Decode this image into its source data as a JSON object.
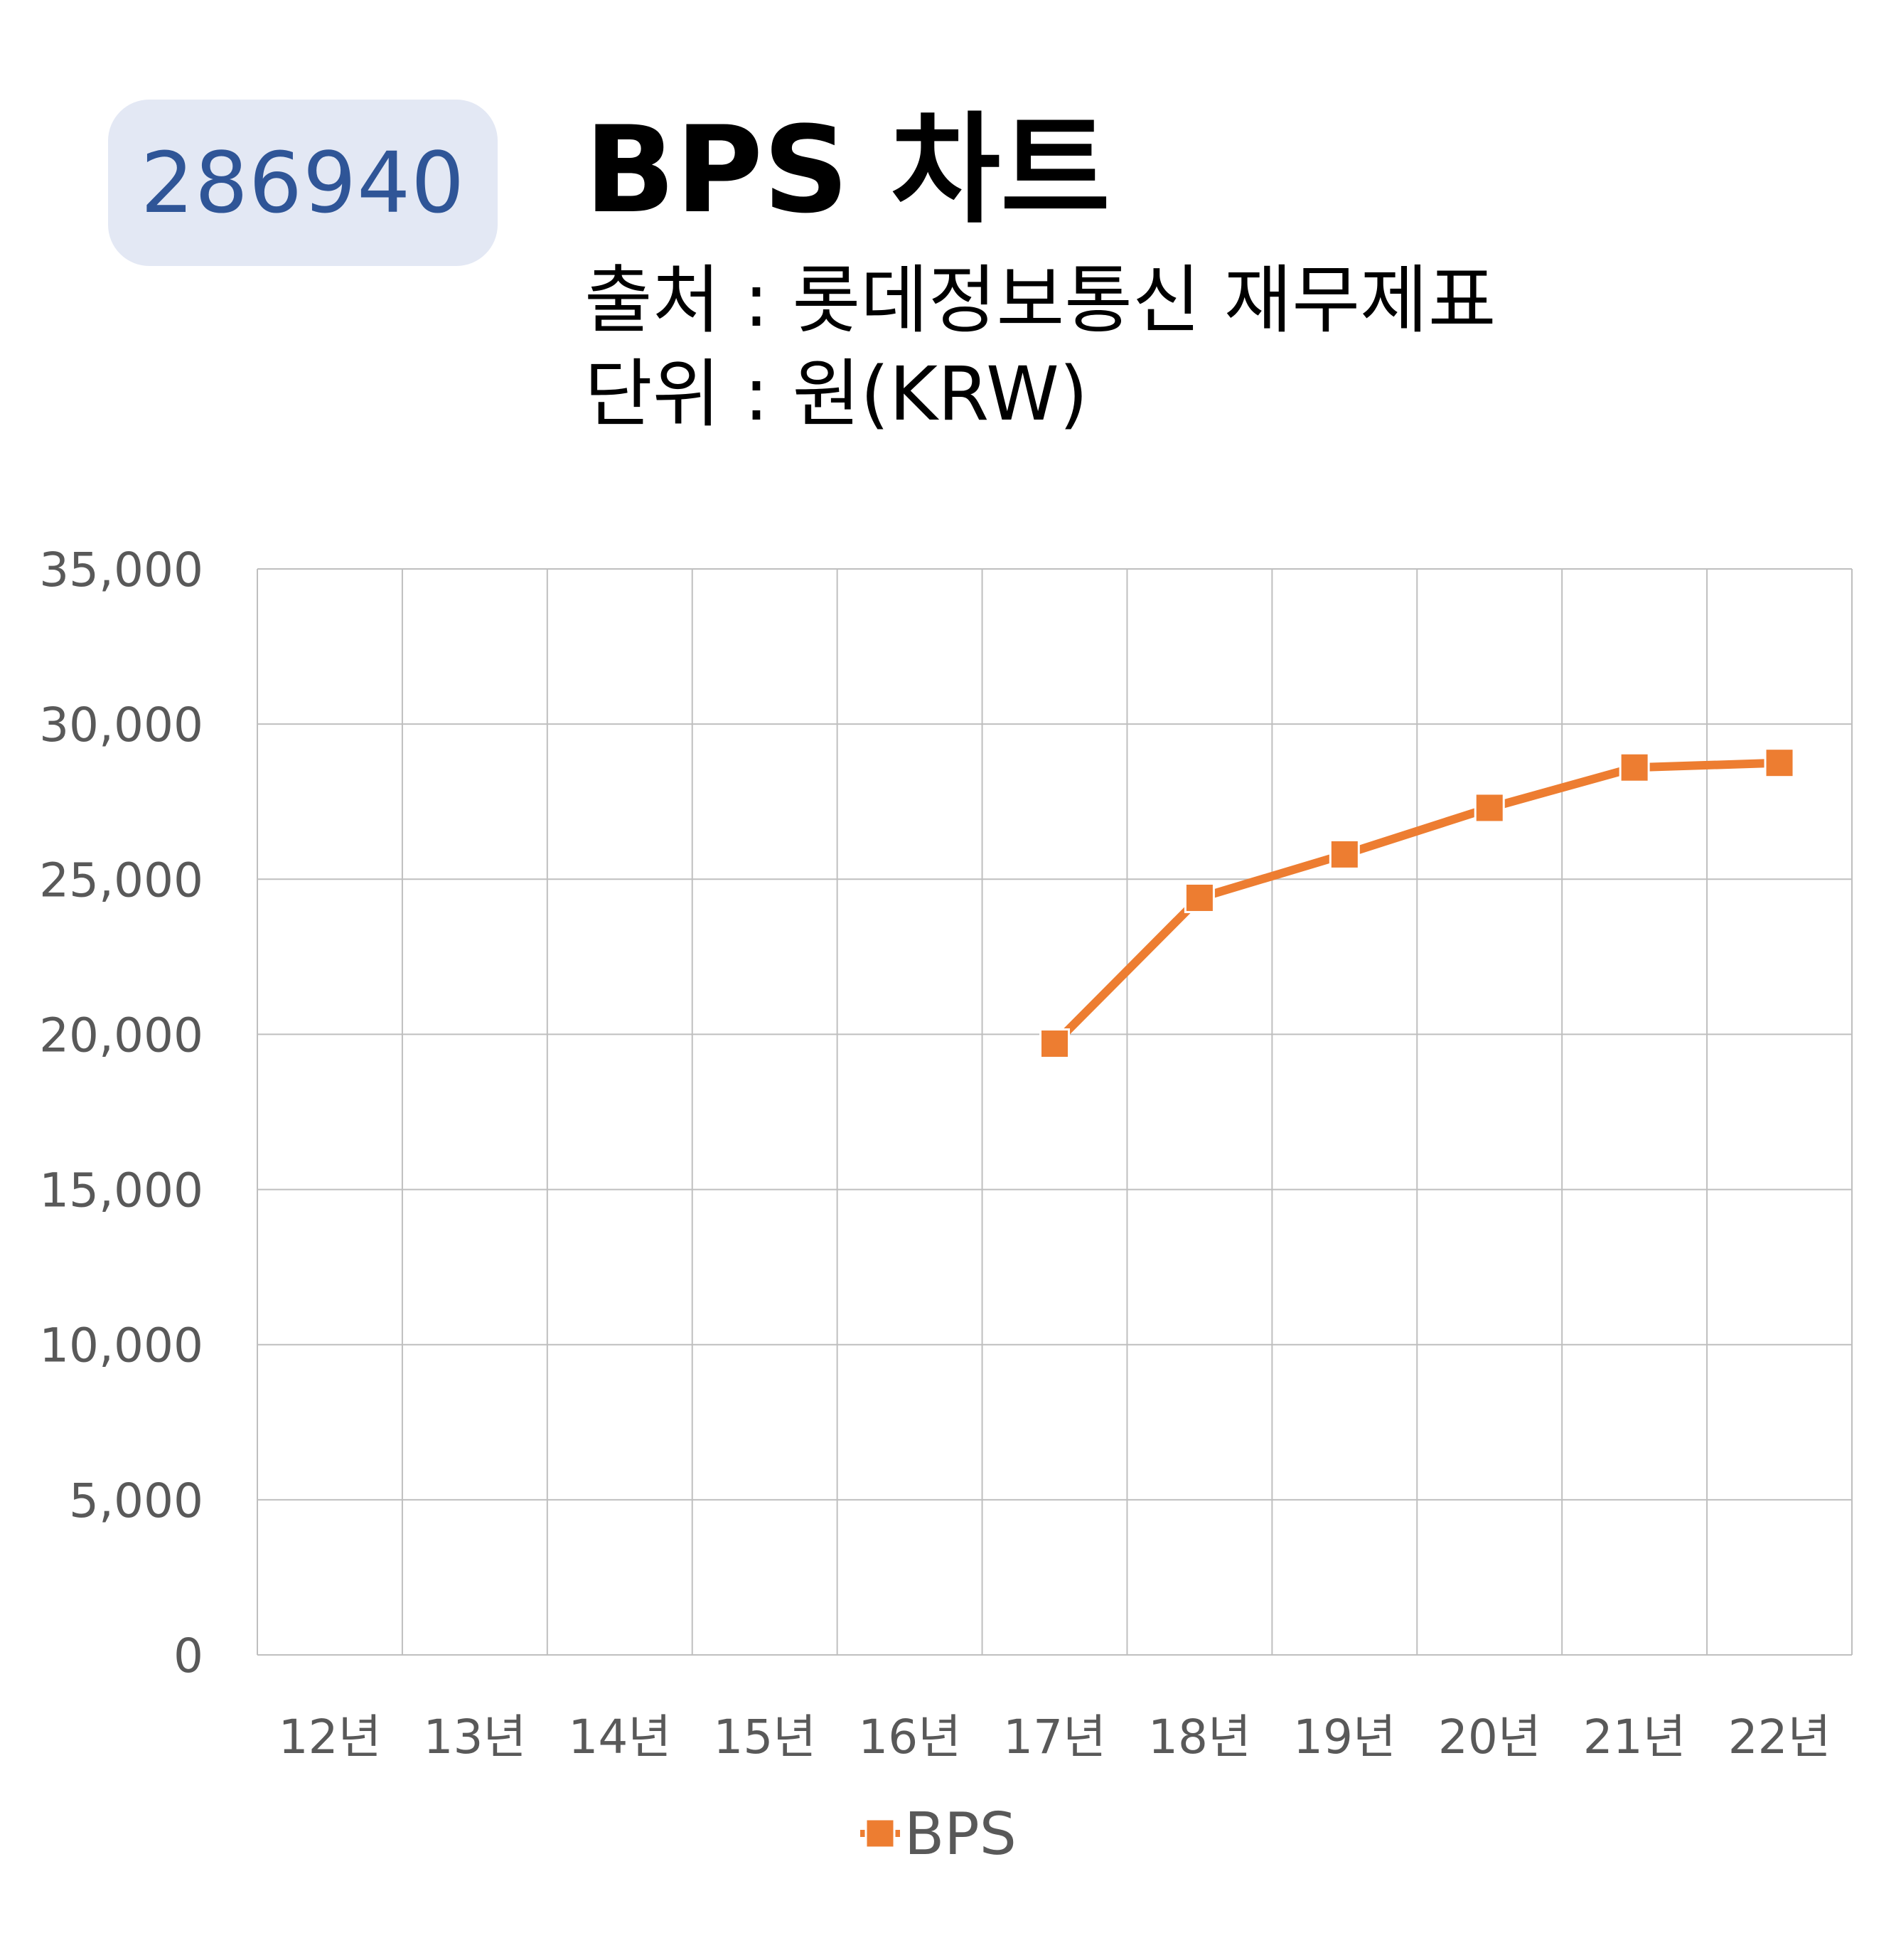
{
  "header": {
    "stock_code": "286940",
    "title": "BPS 차트",
    "source": "출처 : 롯데정보통신 재무제표",
    "unit": "단위 : 원(KRW)"
  },
  "colors": {
    "badge_bg": "#e3e8f4",
    "badge_text": "#2f5597",
    "series": "#ed7d31",
    "grid": "#bfbfbf",
    "tick_text": "#595959"
  },
  "chart_data": {
    "type": "line",
    "categories": [
      "12년",
      "13년",
      "14년",
      "15년",
      "16년",
      "17년",
      "18년",
      "19년",
      "20년",
      "21년",
      "22년"
    ],
    "series": [
      {
        "name": "BPS",
        "values": [
          null,
          null,
          null,
          null,
          null,
          19700,
          24400,
          25800,
          27300,
          28600,
          28750
        ],
        "marker": "square"
      }
    ],
    "y_ticks": [
      "0",
      "5,000",
      "10,000",
      "15,000",
      "20,000",
      "25,000",
      "30,000",
      "35,000"
    ],
    "ylim": [
      0,
      35000
    ],
    "y_step": 5000,
    "grid": true,
    "legend": "bottom"
  }
}
